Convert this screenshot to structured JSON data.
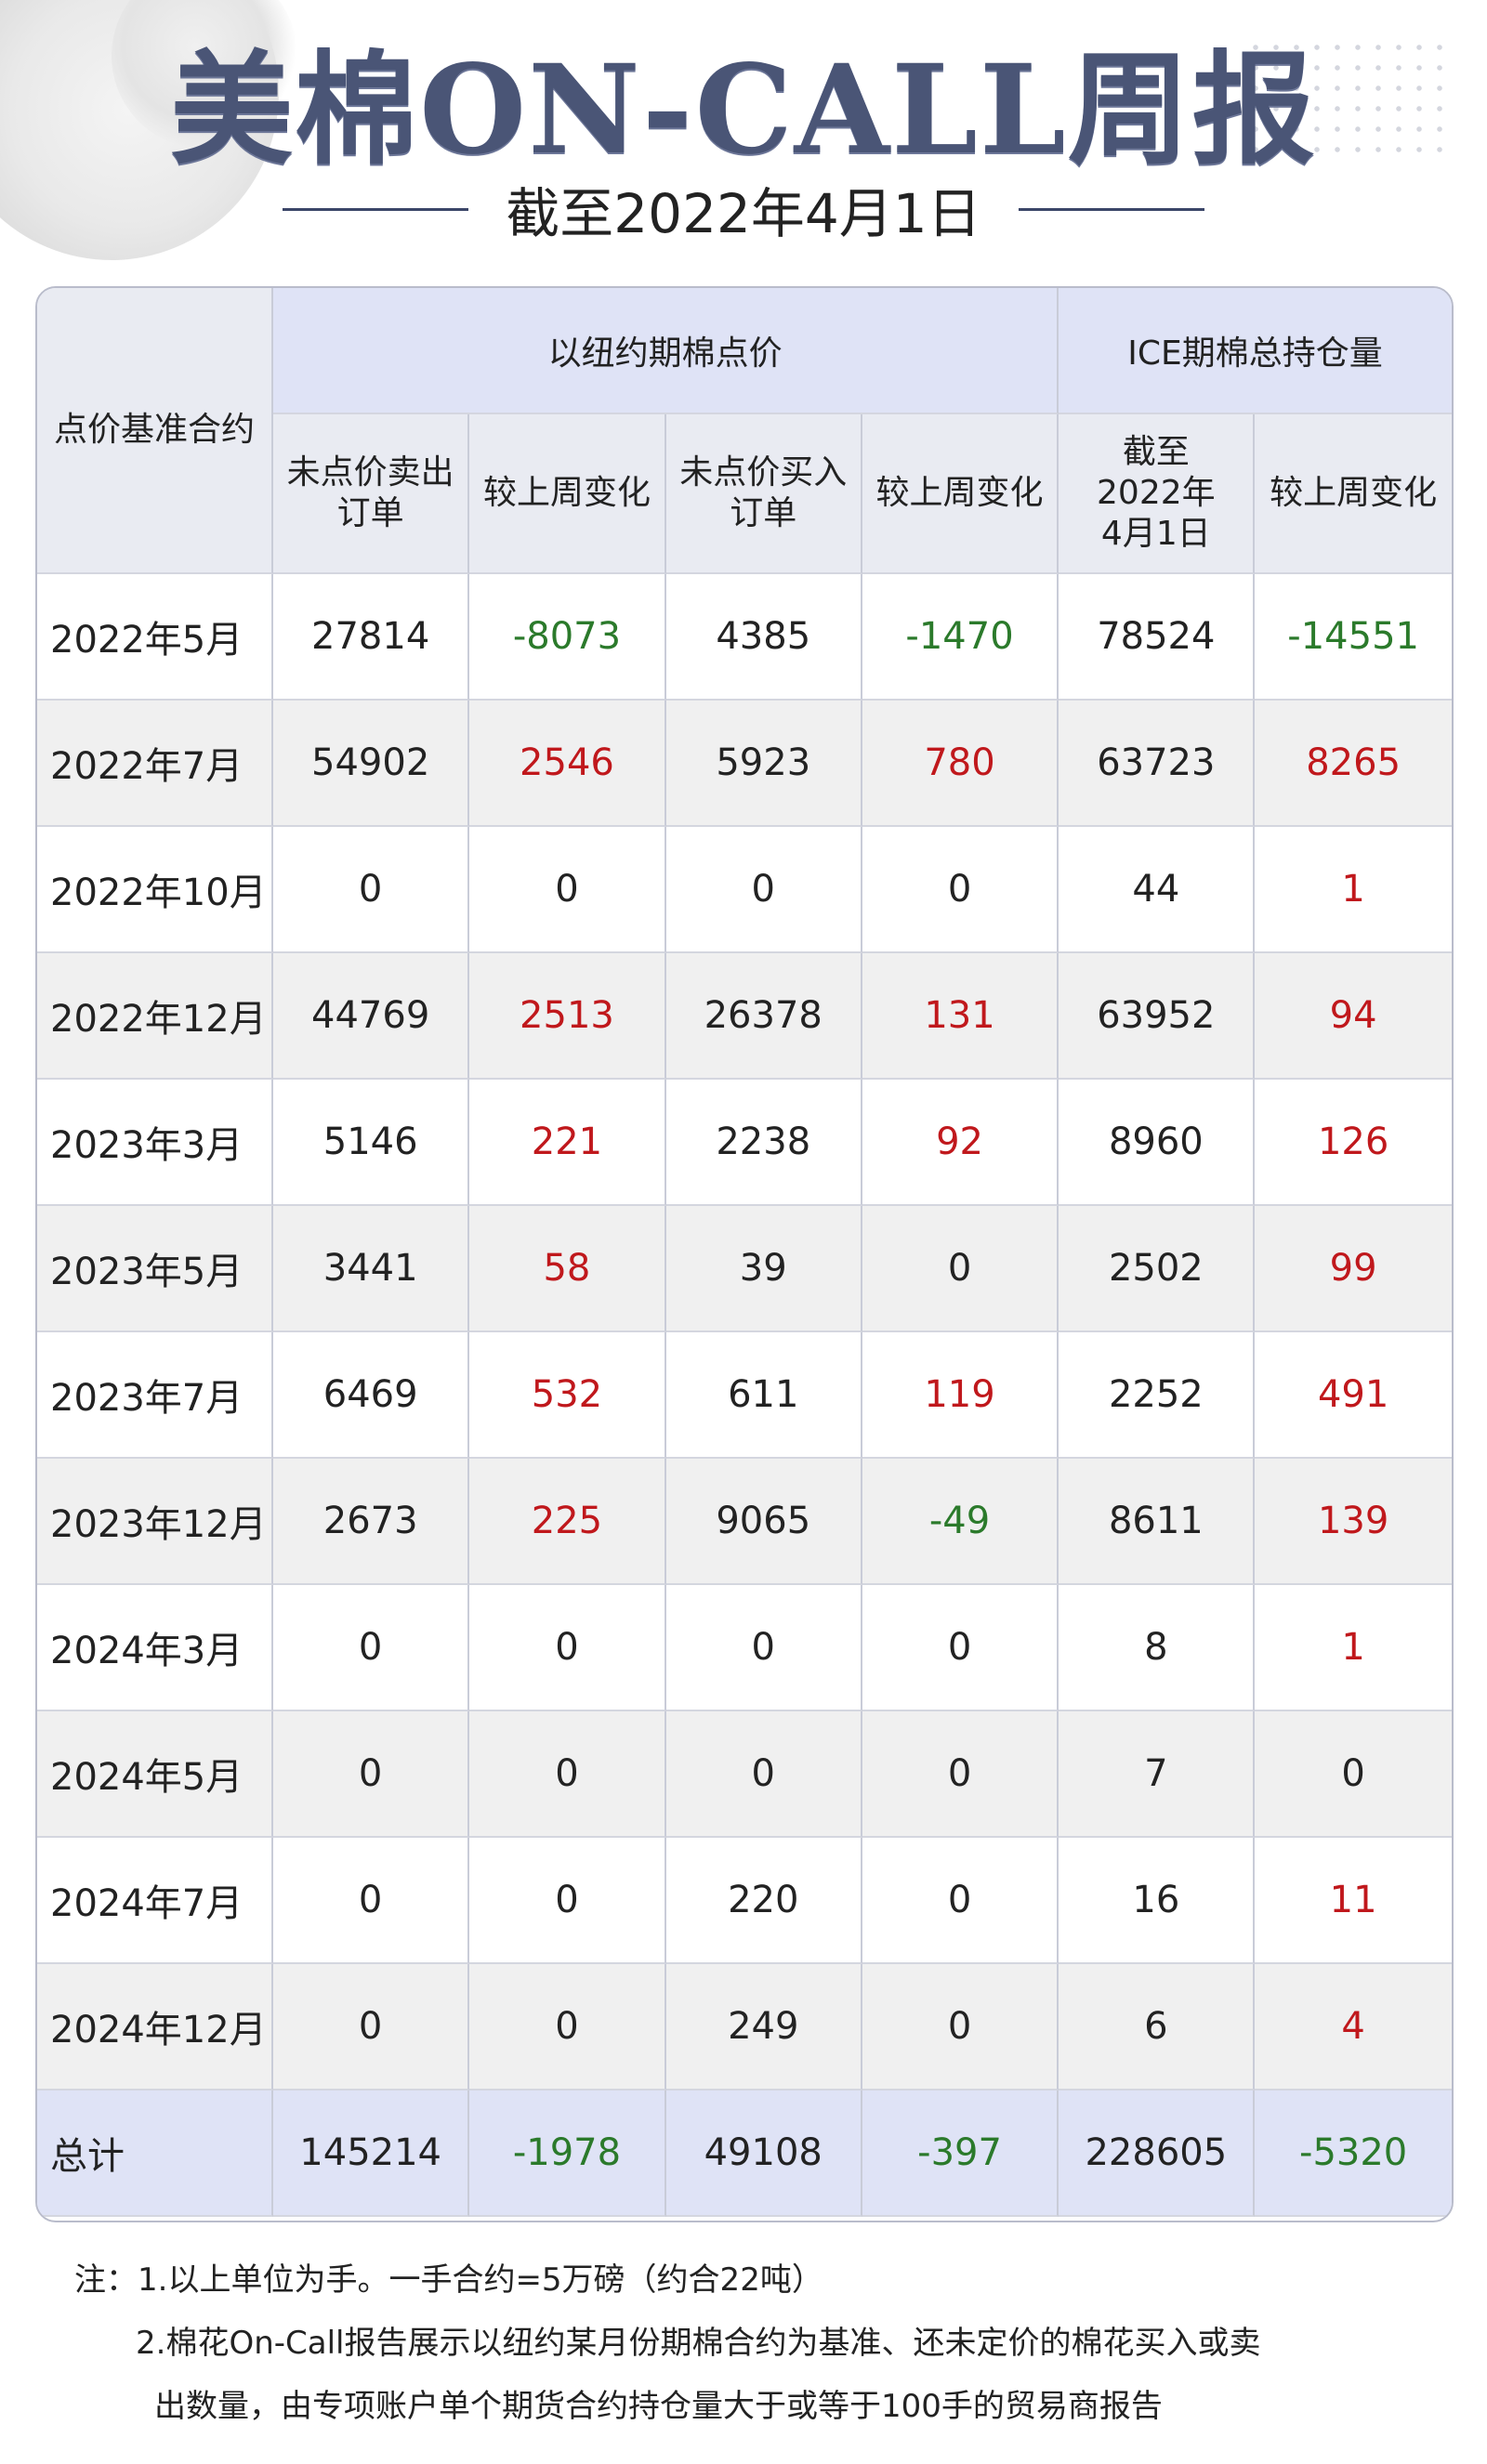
{
  "header": {
    "title": "美棉ON-CALL周报",
    "subtitle": "截至2022年4月1日"
  },
  "table": {
    "col0_header": "点价基准合约",
    "group1_header": "以纽约期棉点价",
    "group2_header": "ICE期棉总持仓量",
    "subheaders": [
      "未点价卖出订单",
      "较上周变化",
      "未点价买入订单",
      "较上周变化",
      "截至2022年4月1日",
      "较上周变化"
    ],
    "rows": [
      {
        "contract": "2022年5月",
        "v": [
          "27814",
          "-8073",
          "4385",
          "-1470",
          "78524",
          "-14551"
        ]
      },
      {
        "contract": "2022年7月",
        "v": [
          "54902",
          "2546",
          "5923",
          "780",
          "63723",
          "8265"
        ]
      },
      {
        "contract": "2022年10月",
        "v": [
          "0",
          "0",
          "0",
          "0",
          "44",
          "1"
        ]
      },
      {
        "contract": "2022年12月",
        "v": [
          "44769",
          "2513",
          "26378",
          "131",
          "63952",
          "94"
        ]
      },
      {
        "contract": "2023年3月",
        "v": [
          "5146",
          "221",
          "2238",
          "92",
          "8960",
          "126"
        ]
      },
      {
        "contract": "2023年5月",
        "v": [
          "3441",
          "58",
          "39",
          "0",
          "2502",
          "99"
        ]
      },
      {
        "contract": "2023年7月",
        "v": [
          "6469",
          "532",
          "611",
          "119",
          "2252",
          "491"
        ]
      },
      {
        "contract": "2023年12月",
        "v": [
          "2673",
          "225",
          "9065",
          "-49",
          "8611",
          "139"
        ]
      },
      {
        "contract": "2024年3月",
        "v": [
          "0",
          "0",
          "0",
          "0",
          "8",
          "1"
        ]
      },
      {
        "contract": "2024年5月",
        "v": [
          "0",
          "0",
          "0",
          "0",
          "7",
          "0"
        ]
      },
      {
        "contract": "2024年7月",
        "v": [
          "0",
          "0",
          "220",
          "0",
          "16",
          "11"
        ]
      },
      {
        "contract": "2024年12月",
        "v": [
          "0",
          "0",
          "249",
          "0",
          "6",
          "4"
        ]
      }
    ],
    "total": {
      "contract": "总计",
      "v": [
        "145214",
        "-1978",
        "49108",
        "-397",
        "228605",
        "-5320"
      ]
    }
  },
  "notes": {
    "line1": "注：1.以上单位为手。一手合约=5万磅（约合22吨）",
    "line2": "2.棉花On-Call报告展示以纽约某月份期棉合约为基准、还未定价的棉花买入或卖",
    "line3": "出数量，由专项账户单个期货合约持仓量大于或等于100手的贸易商报告"
  },
  "colors": {
    "title": "#4a5576",
    "positive": "#c0181c",
    "negative": "#2b7a2b",
    "header_bg": "#dfe3f6"
  }
}
